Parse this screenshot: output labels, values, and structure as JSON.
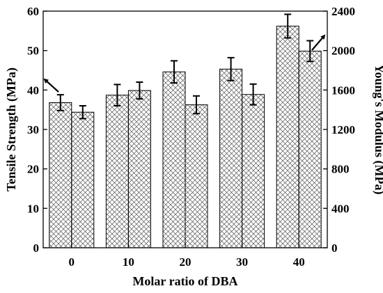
{
  "chart_data": {
    "type": "bar",
    "categories": [
      "0",
      "10",
      "20",
      "30",
      "40"
    ],
    "xlabel": "Molar ratio of DBA",
    "ylabel_left": "Tensile Strength (MPa)",
    "ylabel_right": "Young's Modulus (MPa)",
    "ylim_left": [
      0,
      60
    ],
    "ylim_right": [
      0,
      2400
    ],
    "yticks_left": [
      "0",
      "10",
      "20",
      "30",
      "40",
      "50",
      "60"
    ],
    "yticks_right": [
      "0",
      "400",
      "800",
      "1200",
      "1600",
      "2000",
      "2400"
    ],
    "grid": false,
    "series": [
      {
        "axis": "left",
        "values": [
          36.8,
          38.7,
          44.6,
          45.3,
          56.2
        ],
        "errors": [
          2.0,
          2.7,
          2.8,
          2.9,
          3.0
        ],
        "hatch": "diagonal-cross"
      },
      {
        "axis": "right",
        "values": [
          1375,
          1595,
          1450,
          1555,
          1995
        ],
        "errors": [
          65,
          85,
          90,
          105,
          105
        ],
        "hatch": "diagonal-cross"
      }
    ],
    "annotations": [
      {
        "type": "arrow",
        "direction": "points-left",
        "target_axis": "left"
      },
      {
        "type": "arrow",
        "direction": "points-right",
        "target_axis": "right"
      }
    ]
  }
}
